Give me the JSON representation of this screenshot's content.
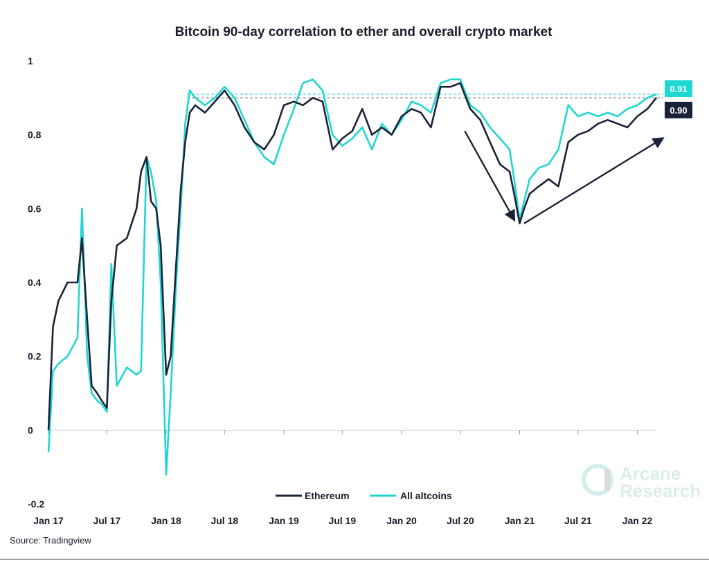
{
  "chart_data": {
    "type": "line",
    "title": "Bitcoin 90-day correlation to ether and overall crypto market",
    "xlabel": "",
    "ylabel": "",
    "ylim": [
      -0.2,
      1
    ],
    "yticks": [
      "1",
      "0.8",
      "0.6",
      "0.4",
      "0.2",
      "0",
      "-0.2"
    ],
    "ytick_values": [
      1,
      0.8,
      0.6,
      0.4,
      0.2,
      0,
      -0.2
    ],
    "xticks": [
      "Jan 17",
      "Jul 17",
      "Jan 18",
      "Jul 18",
      "Jan 19",
      "Jul 19",
      "Jan 20",
      "Jul 20",
      "Jan 21",
      "Jul 21",
      "Jan 22"
    ],
    "xtick_values": [
      "2017-01",
      "2017-07",
      "2018-01",
      "2018-07",
      "2019-01",
      "2019-07",
      "2020-01",
      "2020-07",
      "2021-01",
      "2021-07",
      "2022-01"
    ],
    "xlim": [
      "2017-01",
      "2022-03"
    ],
    "grid": false,
    "legend_position": "bottom-center",
    "series": [
      {
        "name": "Ethereum",
        "color": "#1b2237",
        "end_value": "0.90",
        "points": [
          [
            "2017-01",
            0.0
          ],
          [
            "2017-01-15",
            0.28
          ],
          [
            "2017-02",
            0.35
          ],
          [
            "2017-03",
            0.4
          ],
          [
            "2017-04",
            0.4
          ],
          [
            "2017-04-15",
            0.52
          ],
          [
            "2017-05",
            0.3
          ],
          [
            "2017-05-15",
            0.12
          ],
          [
            "2017-06",
            0.1
          ],
          [
            "2017-06-15",
            0.08
          ],
          [
            "2017-07",
            0.06
          ],
          [
            "2017-07-15",
            0.35
          ],
          [
            "2017-08",
            0.5
          ],
          [
            "2017-09",
            0.52
          ],
          [
            "2017-10",
            0.6
          ],
          [
            "2017-10-15",
            0.7
          ],
          [
            "2017-11",
            0.74
          ],
          [
            "2017-11-15",
            0.62
          ],
          [
            "2017-12",
            0.6
          ],
          [
            "2017-12-15",
            0.5
          ],
          [
            "2018-01",
            0.15
          ],
          [
            "2018-01-15",
            0.2
          ],
          [
            "2018-02",
            0.45
          ],
          [
            "2018-02-15",
            0.65
          ],
          [
            "2018-03",
            0.78
          ],
          [
            "2018-03-15",
            0.86
          ],
          [
            "2018-04",
            0.88
          ],
          [
            "2018-05",
            0.86
          ],
          [
            "2018-06",
            0.89
          ],
          [
            "2018-07",
            0.92
          ],
          [
            "2018-08",
            0.88
          ],
          [
            "2018-09",
            0.82
          ],
          [
            "2018-10",
            0.78
          ],
          [
            "2018-11",
            0.76
          ],
          [
            "2018-12",
            0.8
          ],
          [
            "2019-01",
            0.88
          ],
          [
            "2019-02",
            0.89
          ],
          [
            "2019-03",
            0.88
          ],
          [
            "2019-04",
            0.9
          ],
          [
            "2019-05",
            0.89
          ],
          [
            "2019-06",
            0.76
          ],
          [
            "2019-07",
            0.79
          ],
          [
            "2019-08",
            0.81
          ],
          [
            "2019-09",
            0.87
          ],
          [
            "2019-10",
            0.8
          ],
          [
            "2019-11",
            0.82
          ],
          [
            "2019-12",
            0.8
          ],
          [
            "2020-01",
            0.85
          ],
          [
            "2020-02",
            0.87
          ],
          [
            "2020-03",
            0.86
          ],
          [
            "2020-04",
            0.82
          ],
          [
            "2020-05",
            0.93
          ],
          [
            "2020-06",
            0.93
          ],
          [
            "2020-07",
            0.94
          ],
          [
            "2020-08",
            0.87
          ],
          [
            "2020-09",
            0.84
          ],
          [
            "2020-10",
            0.78
          ],
          [
            "2020-11",
            0.72
          ],
          [
            "2020-12",
            0.7
          ],
          [
            "2020-12-15",
            0.64
          ],
          [
            "2021-01",
            0.56
          ],
          [
            "2021-01-15",
            0.6
          ],
          [
            "2021-02",
            0.64
          ],
          [
            "2021-03",
            0.66
          ],
          [
            "2021-04",
            0.68
          ],
          [
            "2021-05",
            0.66
          ],
          [
            "2021-06",
            0.78
          ],
          [
            "2021-07",
            0.8
          ],
          [
            "2021-08",
            0.81
          ],
          [
            "2021-09",
            0.83
          ],
          [
            "2021-10",
            0.84
          ],
          [
            "2021-11",
            0.83
          ],
          [
            "2021-12",
            0.82
          ],
          [
            "2022-01",
            0.85
          ],
          [
            "2022-02",
            0.87
          ],
          [
            "2022-03",
            0.9
          ]
        ]
      },
      {
        "name": "All altcoins",
        "color": "#1ed6d2",
        "end_value": "0.91",
        "points": [
          [
            "2017-01",
            -0.06
          ],
          [
            "2017-01-15",
            0.16
          ],
          [
            "2017-02",
            0.18
          ],
          [
            "2017-03",
            0.2
          ],
          [
            "2017-04",
            0.25
          ],
          [
            "2017-04-15",
            0.6
          ],
          [
            "2017-05",
            0.2
          ],
          [
            "2017-05-15",
            0.1
          ],
          [
            "2017-06",
            0.08
          ],
          [
            "2017-06-15",
            0.07
          ],
          [
            "2017-07",
            0.05
          ],
          [
            "2017-07-15",
            0.45
          ],
          [
            "2017-08",
            0.12
          ],
          [
            "2017-09",
            0.17
          ],
          [
            "2017-10",
            0.15
          ],
          [
            "2017-10-15",
            0.16
          ],
          [
            "2017-11",
            0.74
          ],
          [
            "2017-11-15",
            0.7
          ],
          [
            "2017-12",
            0.62
          ],
          [
            "2017-12-15",
            0.4
          ],
          [
            "2018-01",
            -0.12
          ],
          [
            "2018-01-15",
            0.1
          ],
          [
            "2018-02",
            0.4
          ],
          [
            "2018-02-15",
            0.6
          ],
          [
            "2018-03",
            0.83
          ],
          [
            "2018-03-15",
            0.92
          ],
          [
            "2018-04",
            0.9
          ],
          [
            "2018-05",
            0.88
          ],
          [
            "2018-06",
            0.9
          ],
          [
            "2018-07",
            0.93
          ],
          [
            "2018-08",
            0.9
          ],
          [
            "2018-09",
            0.84
          ],
          [
            "2018-10",
            0.78
          ],
          [
            "2018-11",
            0.74
          ],
          [
            "2018-12",
            0.72
          ],
          [
            "2019-01",
            0.8
          ],
          [
            "2019-02",
            0.87
          ],
          [
            "2019-03",
            0.94
          ],
          [
            "2019-04",
            0.95
          ],
          [
            "2019-05",
            0.92
          ],
          [
            "2019-06",
            0.8
          ],
          [
            "2019-07",
            0.77
          ],
          [
            "2019-08",
            0.79
          ],
          [
            "2019-09",
            0.82
          ],
          [
            "2019-10",
            0.76
          ],
          [
            "2019-11",
            0.83
          ],
          [
            "2019-12",
            0.8
          ],
          [
            "2020-01",
            0.84
          ],
          [
            "2020-02",
            0.89
          ],
          [
            "2020-03",
            0.88
          ],
          [
            "2020-04",
            0.86
          ],
          [
            "2020-05",
            0.94
          ],
          [
            "2020-06",
            0.95
          ],
          [
            "2020-07",
            0.95
          ],
          [
            "2020-08",
            0.88
          ],
          [
            "2020-09",
            0.86
          ],
          [
            "2020-10",
            0.82
          ],
          [
            "2020-11",
            0.79
          ],
          [
            "2020-12",
            0.76
          ],
          [
            "2020-12-15",
            0.68
          ],
          [
            "2021-01",
            0.57
          ],
          [
            "2021-01-15",
            0.62
          ],
          [
            "2021-02",
            0.68
          ],
          [
            "2021-03",
            0.71
          ],
          [
            "2021-04",
            0.72
          ],
          [
            "2021-05",
            0.76
          ],
          [
            "2021-06",
            0.88
          ],
          [
            "2021-07",
            0.85
          ],
          [
            "2021-08",
            0.86
          ],
          [
            "2021-09",
            0.85
          ],
          [
            "2021-10",
            0.86
          ],
          [
            "2021-11",
            0.85
          ],
          [
            "2021-12",
            0.87
          ],
          [
            "2022-01",
            0.88
          ],
          [
            "2022-02",
            0.9
          ],
          [
            "2022-03",
            0.91
          ]
        ]
      }
    ],
    "reference_lines": [
      {
        "value": 0.91,
        "color": "#1ed6d2",
        "style": "dashed"
      },
      {
        "value": 0.9,
        "color": "#555555",
        "style": "dashed"
      }
    ],
    "annotations": [
      {
        "type": "arrow",
        "from": [
          "2020-07-15",
          0.81
        ],
        "to": [
          "2020-12-15",
          0.57
        ]
      },
      {
        "type": "arrow",
        "from": [
          "2021-01-15",
          0.56
        ],
        "to": [
          "2022-03-20",
          0.79
        ]
      }
    ]
  },
  "legend": {
    "items": [
      {
        "label": "Ethereum",
        "color": "#1b2237"
      },
      {
        "label": "All altcoins",
        "color": "#1ed6d2"
      }
    ]
  },
  "source": "Source: Tradingview",
  "watermark": {
    "line1": "Arcane",
    "line2": "Research"
  }
}
